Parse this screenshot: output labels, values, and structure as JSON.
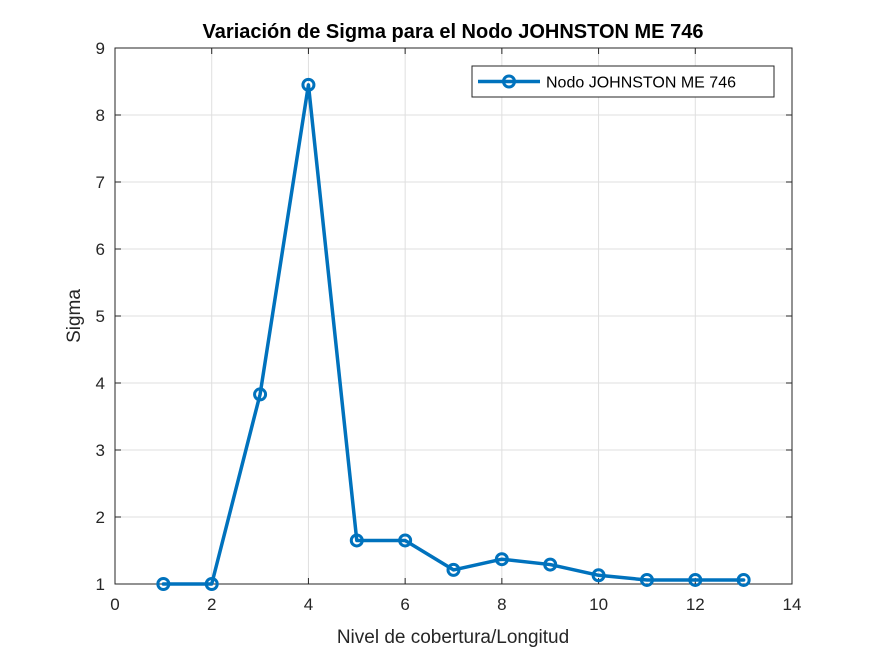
{
  "chart_data": {
    "type": "line",
    "title": "Variación de Sigma para el Nodo JOHNSTON ME 746",
    "xlabel": "Nivel de cobertura/Longitud",
    "ylabel": "Sigma",
    "xlim": [
      0,
      14
    ],
    "ylim": [
      1,
      9
    ],
    "xticks": [
      0,
      2,
      4,
      6,
      8,
      10,
      12,
      14
    ],
    "yticks": [
      1,
      2,
      3,
      4,
      5,
      6,
      7,
      8,
      9
    ],
    "grid": true,
    "legend_position": "top-right",
    "series": [
      {
        "name": "Nodo JOHNSTON ME 746",
        "color": "#0072BD",
        "marker": "circle",
        "x": [
          1,
          2,
          3,
          4,
          5,
          6,
          7,
          8,
          9,
          10,
          11,
          12,
          13
        ],
        "y": [
          1.0,
          1.0,
          3.83,
          8.45,
          1.65,
          1.65,
          1.21,
          1.37,
          1.29,
          1.13,
          1.06,
          1.06,
          1.06
        ]
      }
    ]
  }
}
